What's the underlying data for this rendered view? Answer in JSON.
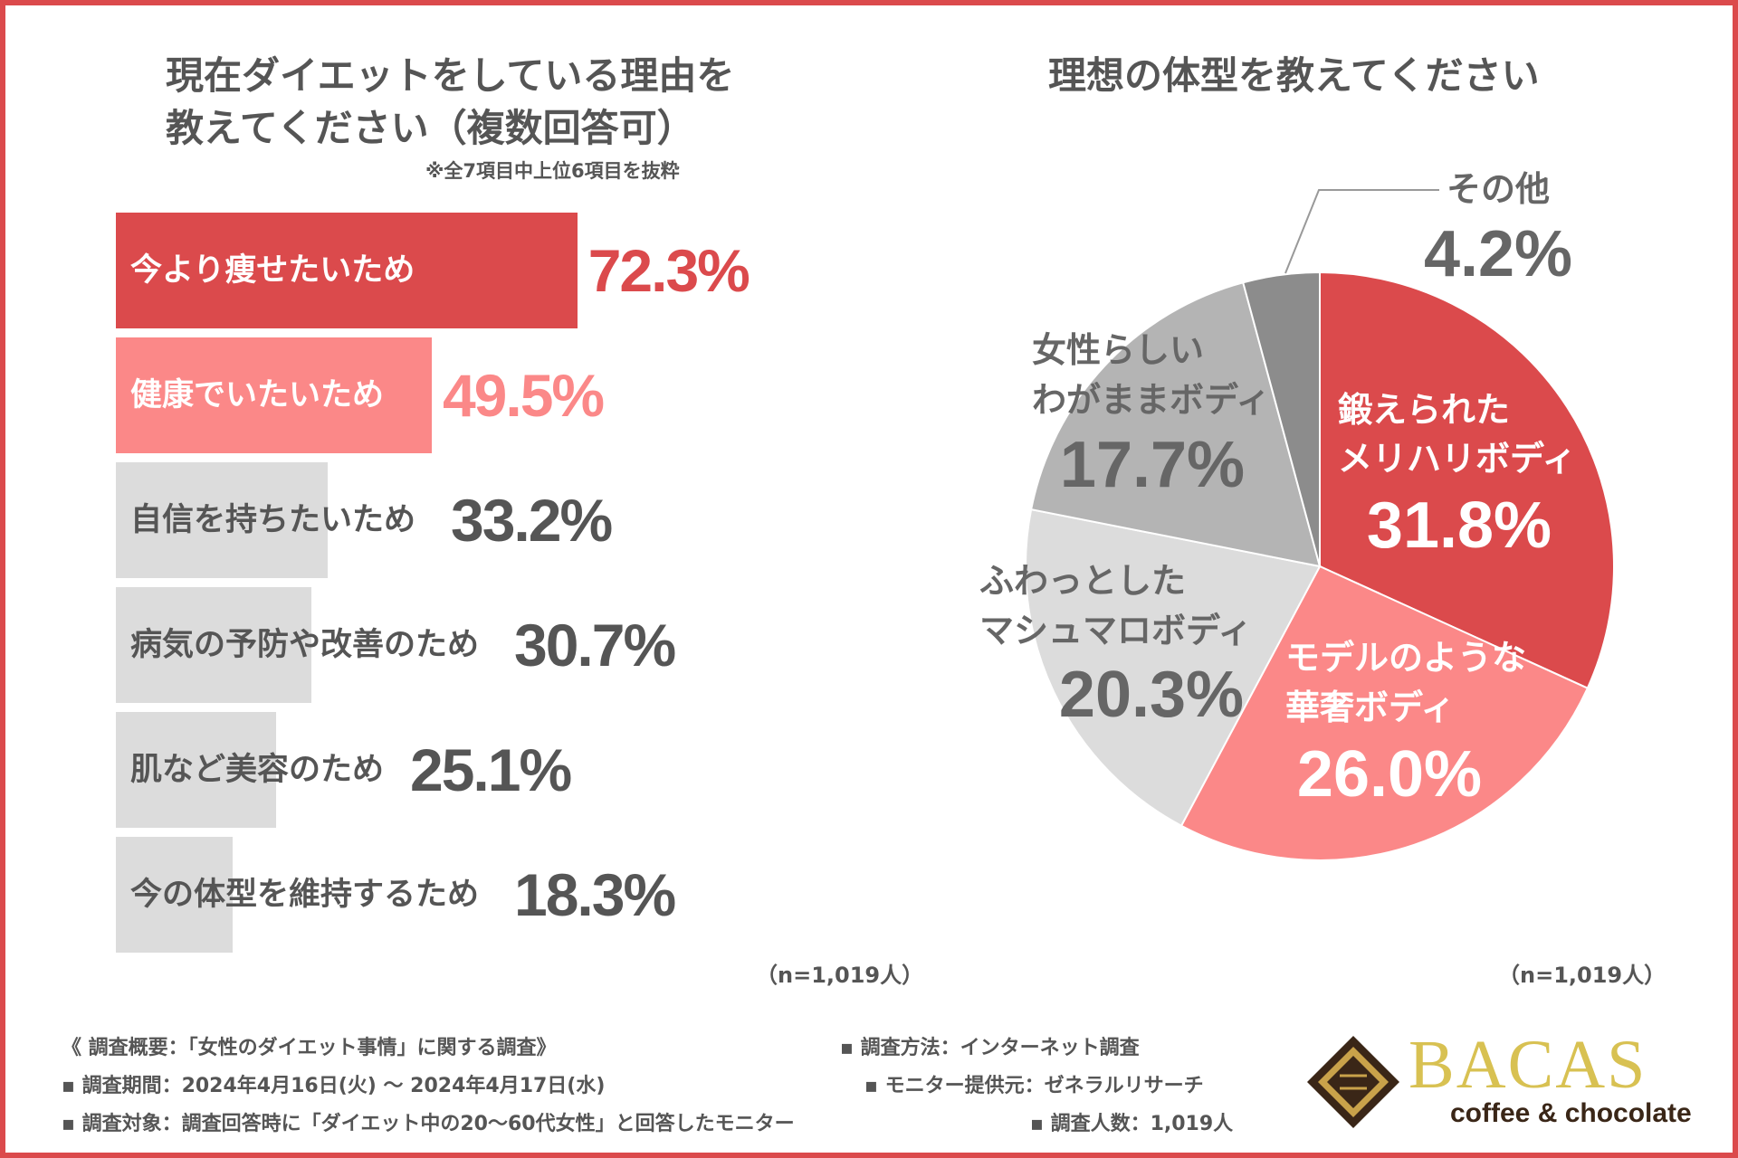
{
  "bar_chart": {
    "title_line1": "現在ダイエットをしている理由を",
    "title_line2": "教えてください（複数回答可）",
    "note": "※全7項目中上位6項目を抜粋",
    "n_label": "（n=1,019人）"
  },
  "pie_chart": {
    "title": "理想の体型を教えてください",
    "n_label": "（n=1,019人）"
  },
  "colors": {
    "primary_red": "#db4a4c",
    "light_red": "#fb8888",
    "gray_light": "#dcdcdc",
    "gray_mid": "#b4b4b4",
    "gray_dark": "#8c8c8c",
    "text_gray": "#555555"
  },
  "chart_data": [
    {
      "type": "bar",
      "orientation": "horizontal",
      "title": "現在ダイエットをしている理由を教えてください（複数回答可）",
      "categories": [
        "今より痩せたいため",
        "健康でいたいため",
        "自信を持ちたいため",
        "病気の予防や改善のため",
        "肌など美容のため",
        "今の体型を維持するため"
      ],
      "values": [
        72.3,
        49.5,
        33.2,
        30.7,
        25.1,
        18.3
      ],
      "value_labels": [
        "72.3%",
        "49.5%",
        "33.2%",
        "30.7%",
        "25.1%",
        "18.3%"
      ],
      "unit": "%",
      "xlim": [
        0,
        100
      ]
    },
    {
      "type": "pie",
      "title": "理想の体型を教えてください",
      "slices": [
        {
          "label_line1": "鍛えられた",
          "label_line2": "メリハリボディ",
          "value": 31.8,
          "value_label": "31.8%"
        },
        {
          "label_line1": "モデルのような",
          "label_line2": "華奢ボディ",
          "value": 26.0,
          "value_label": "26.0%"
        },
        {
          "label_line1": "ふわっとした",
          "label_line2": "マシュマロボディ",
          "value": 20.3,
          "value_label": "20.3%"
        },
        {
          "label_line1": "女性らしい",
          "label_line2": "わがままボディ",
          "value": 17.7,
          "value_label": "17.7%"
        },
        {
          "label_line1": "その他",
          "label_line2": "",
          "value": 4.2,
          "value_label": "4.2%"
        }
      ]
    }
  ],
  "footer": {
    "overview": "《 調査概要：「女性のダイエット事情」に関する調査》",
    "period": "▪ 調査期間：2024年4月16日(火) 〜 2024年4月17日(水)",
    "target": "▪ 調査対象：調査回答時に「ダイエット中の20〜60代女性」と回答したモニター",
    "method": "▪ 調査方法：インターネット調査",
    "provider": "▪ モニター提供元：ゼネラルリサーチ",
    "count": "▪ 調査人数：1,019人"
  },
  "logo": {
    "name": "BACAS",
    "tagline": "coffee & chocolate"
  }
}
